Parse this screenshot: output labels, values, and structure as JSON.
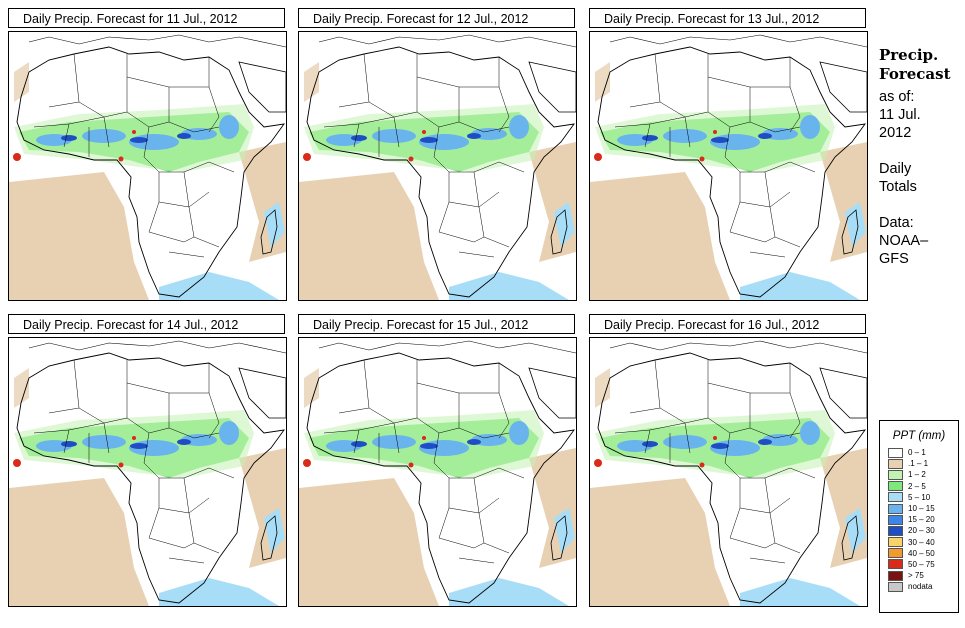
{
  "panels": [
    {
      "title": "Daily Precip. Forecast for  11 Jul., 2012"
    },
    {
      "title": "Daily Precip. Forecast for  12 Jul., 2012"
    },
    {
      "title": "Daily Precip. Forecast for  13 Jul., 2012"
    },
    {
      "title": "Daily Precip. Forecast for  14 Jul., 2012"
    },
    {
      "title": "Daily Precip. Forecast for  15 Jul., 2012"
    },
    {
      "title": "Daily Precip. Forecast for  16 Jul., 2012"
    }
  ],
  "side": {
    "heading1": "Precip.",
    "heading2": "Forecast",
    "asof_label": "as of:",
    "asof_date1": "11 Jul.",
    "asof_date2": "2012",
    "totals1": "Daily",
    "totals2": "Totals",
    "data_label": "Data:",
    "data_src1": "NOAA–",
    "data_src2": "GFS"
  },
  "legend": {
    "title": "PPT (mm)",
    "items": [
      {
        "label": "0 – 1",
        "color": "#ffffff"
      },
      {
        "label": ".1 – 1",
        "color": "#e8d1b3"
      },
      {
        "label": "1 – 2",
        "color": "#c2f2b2"
      },
      {
        "label": "2 – 5",
        "color": "#7ee87a"
      },
      {
        "label": "5 – 10",
        "color": "#a8ddf7"
      },
      {
        "label": "10 – 15",
        "color": "#6ab4ee"
      },
      {
        "label": "15 – 20",
        "color": "#3c86e6"
      },
      {
        "label": "20 – 30",
        "color": "#1f4ec4"
      },
      {
        "label": "30 – 40",
        "color": "#f7d36b"
      },
      {
        "label": "40 – 50",
        "color": "#f29a2e"
      },
      {
        "label": "50 – 75",
        "color": "#d92b1a"
      },
      {
        "label": "> 75",
        "color": "#7a1212"
      },
      {
        "label": "nodata",
        "color": "#c8c8c8"
      }
    ]
  }
}
